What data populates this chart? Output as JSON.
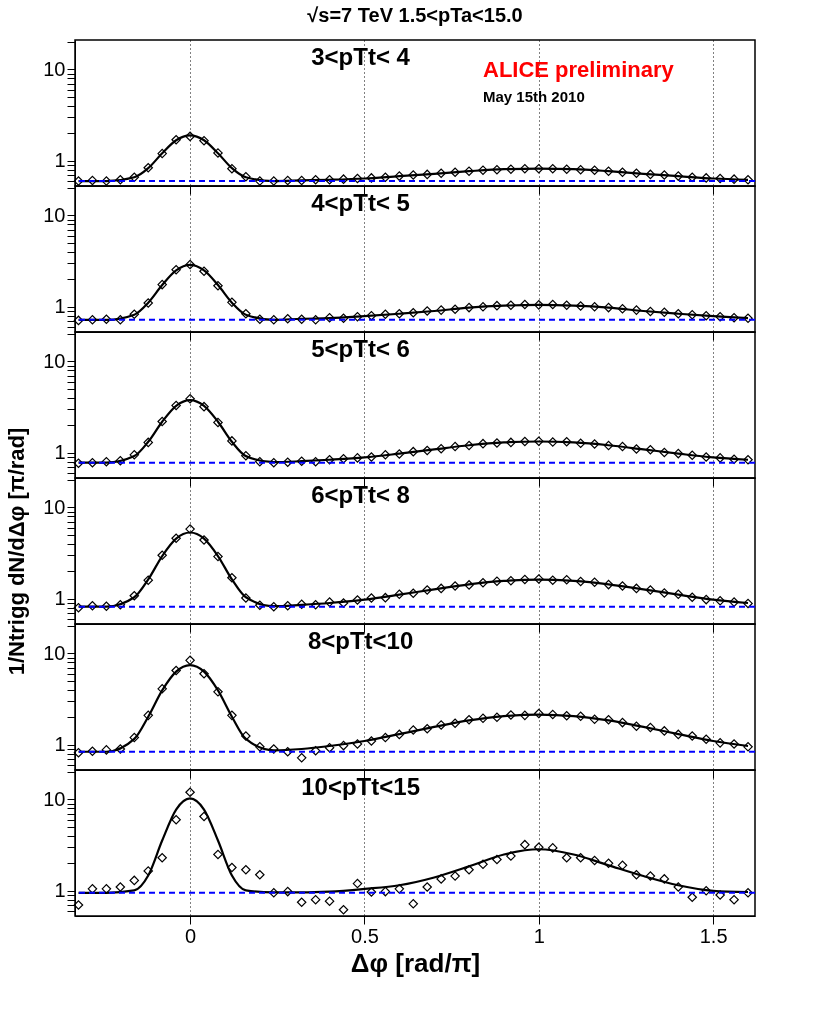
{
  "chart_data": [
    {
      "type": "scatter",
      "title": "√s=7 TeV     1.5<pTa<15.0",
      "subtitle": "3<pTt< 4",
      "annotations": [
        "ALICE preliminary",
        "May 15th 2010"
      ],
      "tick_labels": "y",
      "log": true,
      "grid": "x",
      "marker": "diamond",
      "x": [
        -0.32,
        -0.28,
        -0.24,
        -0.2,
        -0.16,
        -0.12,
        -0.08,
        -0.04,
        0,
        0.04,
        0.08,
        0.12,
        0.16,
        0.2,
        0.24,
        0.28,
        0.32,
        0.36,
        0.4,
        0.44,
        0.48,
        0.52,
        0.56,
        0.6,
        0.64,
        0.68,
        0.72,
        0.76,
        0.8,
        0.84,
        0.88,
        0.92,
        0.96,
        1.0,
        1.04,
        1.08,
        1.12,
        1.16,
        1.2,
        1.24,
        1.28,
        1.32,
        1.36,
        1.4,
        1.44,
        1.48,
        1.52,
        1.56,
        1.6
      ],
      "xlim": [
        -0.33,
        1.62
      ],
      "xticks": [
        0,
        0.5,
        1,
        1.5
      ],
      "ylim": [
        0.53,
        21
      ],
      "yticks": [
        {
          "value": 0.6,
          "label": null
        },
        {
          "value": 0.7,
          "label": null
        },
        {
          "value": 0.8,
          "label": null
        },
        {
          "value": 0.9,
          "label": null
        },
        1,
        {
          "value": 2,
          "label": null
        },
        {
          "value": 3,
          "label": null
        },
        {
          "value": 4,
          "label": null
        },
        {
          "value": 5,
          "label": null
        },
        {
          "value": 6,
          "label": null
        },
        {
          "value": 7,
          "label": null
        },
        {
          "value": 8,
          "label": null
        },
        {
          "value": 9,
          "label": null
        },
        10,
        {
          "value": 20,
          "label": null
        }
      ],
      "ref_lines": [
        {
          "axis": "y",
          "value": 0.6,
          "color": "#0000ff",
          "line_style": "dashed"
        }
      ],
      "series": [
        {
          "color": "#000000",
          "values": [
            0.6,
            0.61,
            0.6,
            0.62,
            0.66,
            0.84,
            1.2,
            1.7,
            1.85,
            1.66,
            1.22,
            0.82,
            0.67,
            0.6,
            0.6,
            0.61,
            0.61,
            0.62,
            0.62,
            0.63,
            0.64,
            0.65,
            0.66,
            0.68,
            0.7,
            0.71,
            0.73,
            0.75,
            0.77,
            0.79,
            0.8,
            0.81,
            0.82,
            0.82,
            0.82,
            0.81,
            0.8,
            0.79,
            0.77,
            0.75,
            0.73,
            0.71,
            0.7,
            0.68,
            0.66,
            0.65,
            0.64,
            0.63,
            0.62
          ]
        },
        {
          "type": "line",
          "color": "#000000",
          "x": [
            -0.32,
            -0.24,
            -0.16,
            -0.12,
            -0.08,
            -0.04,
            0,
            0.04,
            0.08,
            0.12,
            0.16,
            0.24,
            0.32,
            0.4,
            0.5,
            0.6,
            0.7,
            0.8,
            0.9,
            1.0,
            1.1,
            1.2,
            1.3,
            1.4,
            1.5,
            1.6
          ],
          "marker": "none",
          "values": [
            0.6,
            0.6,
            0.66,
            0.83,
            1.21,
            1.68,
            1.9,
            1.68,
            1.21,
            0.83,
            0.66,
            0.6,
            0.61,
            0.62,
            0.64,
            0.68,
            0.72,
            0.77,
            0.81,
            0.82,
            0.81,
            0.77,
            0.72,
            0.68,
            0.64,
            0.62
          ]
        }
      ]
    },
    {
      "type": "scatter",
      "subtitle": "4<pTt< 5",
      "tick_labels": "y",
      "log": true,
      "grid": "x",
      "marker": "diamond",
      "x": [
        -0.32,
        -0.28,
        -0.24,
        -0.2,
        -0.16,
        -0.12,
        -0.08,
        -0.04,
        0,
        0.04,
        0.08,
        0.12,
        0.16,
        0.2,
        0.24,
        0.28,
        0.32,
        0.36,
        0.4,
        0.44,
        0.48,
        0.52,
        0.56,
        0.6,
        0.64,
        0.68,
        0.72,
        0.76,
        0.8,
        0.84,
        0.88,
        0.92,
        0.96,
        1.0,
        1.04,
        1.08,
        1.12,
        1.16,
        1.2,
        1.24,
        1.28,
        1.32,
        1.36,
        1.4,
        1.44,
        1.48,
        1.52,
        1.56,
        1.6
      ],
      "xlim": [
        -0.33,
        1.62
      ],
      "xticks": [
        0,
        0.5,
        1,
        1.5
      ],
      "ylim": [
        0.53,
        21
      ],
      "yticks": [
        {
          "value": 0.6,
          "label": null
        },
        {
          "value": 0.7,
          "label": null
        },
        {
          "value": 0.8,
          "label": null
        },
        {
          "value": 0.9,
          "label": null
        },
        1,
        {
          "value": 2,
          "label": null
        },
        {
          "value": 3,
          "label": null
        },
        {
          "value": 4,
          "label": null
        },
        {
          "value": 5,
          "label": null
        },
        {
          "value": 6,
          "label": null
        },
        {
          "value": 7,
          "label": null
        },
        {
          "value": 8,
          "label": null
        },
        {
          "value": 9,
          "label": null
        },
        10,
        {
          "value": 20,
          "label": null
        }
      ],
      "ref_lines": [
        {
          "axis": "y",
          "value": 0.72,
          "color": "#0000ff",
          "line_style": "dashed"
        }
      ],
      "series": [
        {
          "color": "#000000",
          "values": [
            0.71,
            0.72,
            0.73,
            0.72,
            0.83,
            1.1,
            1.75,
            2.55,
            2.9,
            2.45,
            1.7,
            1.12,
            0.84,
            0.73,
            0.72,
            0.74,
            0.73,
            0.72,
            0.76,
            0.75,
            0.78,
            0.8,
            0.83,
            0.84,
            0.86,
            0.9,
            0.92,
            0.94,
            0.98,
            1.0,
            1.03,
            1.04,
            1.06,
            1.05,
            1.06,
            1.04,
            1.02,
            1.0,
            0.98,
            0.95,
            0.92,
            0.89,
            0.87,
            0.84,
            0.82,
            0.8,
            0.78,
            0.76,
            0.75
          ]
        },
        {
          "type": "line",
          "color": "#000000",
          "x": [
            -0.32,
            -0.24,
            -0.16,
            -0.12,
            -0.08,
            -0.04,
            0,
            0.04,
            0.08,
            0.12,
            0.16,
            0.24,
            0.32,
            0.4,
            0.5,
            0.6,
            0.7,
            0.8,
            0.9,
            1.0,
            1.1,
            1.2,
            1.3,
            1.4,
            1.5,
            1.6
          ],
          "marker": "none",
          "values": [
            0.72,
            0.72,
            0.82,
            1.11,
            1.73,
            2.5,
            2.87,
            2.5,
            1.73,
            1.11,
            0.82,
            0.72,
            0.74,
            0.75,
            0.79,
            0.84,
            0.9,
            0.98,
            1.03,
            1.05,
            1.03,
            0.98,
            0.9,
            0.84,
            0.79,
            0.75
          ]
        }
      ]
    },
    {
      "type": "scatter",
      "subtitle": "5<pTt< 6",
      "tick_labels": "y",
      "log": true,
      "grid": "x",
      "marker": "diamond",
      "x": [
        -0.32,
        -0.28,
        -0.24,
        -0.2,
        -0.16,
        -0.12,
        -0.08,
        -0.04,
        0,
        0.04,
        0.08,
        0.12,
        0.16,
        0.2,
        0.24,
        0.28,
        0.32,
        0.36,
        0.4,
        0.44,
        0.48,
        0.52,
        0.56,
        0.6,
        0.64,
        0.68,
        0.72,
        0.76,
        0.8,
        0.84,
        0.88,
        0.92,
        0.96,
        1.0,
        1.04,
        1.08,
        1.12,
        1.16,
        1.2,
        1.24,
        1.28,
        1.32,
        1.36,
        1.4,
        1.44,
        1.48,
        1.52,
        1.56,
        1.6
      ],
      "xlim": [
        -0.33,
        1.62
      ],
      "xticks": [
        0,
        0.5,
        1,
        1.5
      ],
      "ylim": [
        0.53,
        21
      ],
      "yticks": [
        {
          "value": 0.6,
          "label": null
        },
        {
          "value": 0.7,
          "label": null
        },
        {
          "value": 0.8,
          "label": null
        },
        {
          "value": 0.9,
          "label": null
        },
        1,
        {
          "value": 2,
          "label": null
        },
        {
          "value": 3,
          "label": null
        },
        {
          "value": 4,
          "label": null
        },
        {
          "value": 5,
          "label": null
        },
        {
          "value": 6,
          "label": null
        },
        {
          "value": 7,
          "label": null
        },
        {
          "value": 8,
          "label": null
        },
        {
          "value": 9,
          "label": null
        },
        10,
        {
          "value": 20,
          "label": null
        }
      ],
      "ref_lines": [
        {
          "axis": "y",
          "value": 0.78,
          "color": "#0000ff",
          "line_style": "dashed"
        }
      ],
      "series": [
        {
          "color": "#000000",
          "values": [
            0.77,
            0.78,
            0.8,
            0.82,
            0.95,
            1.3,
            2.2,
            3.3,
            3.9,
            3.2,
            2.15,
            1.35,
            0.93,
            0.8,
            0.78,
            0.79,
            0.81,
            0.8,
            0.84,
            0.86,
            0.88,
            0.9,
            0.95,
            0.97,
            1.03,
            1.06,
            1.11,
            1.17,
            1.2,
            1.26,
            1.28,
            1.3,
            1.33,
            1.34,
            1.31,
            1.32,
            1.27,
            1.25,
            1.2,
            1.17,
            1.1,
            1.08,
            1.01,
            0.98,
            0.94,
            0.9,
            0.88,
            0.85,
            0.84
          ]
        },
        {
          "type": "line",
          "color": "#000000",
          "x": [
            -0.32,
            -0.24,
            -0.16,
            -0.12,
            -0.08,
            -0.04,
            0,
            0.04,
            0.08,
            0.12,
            0.16,
            0.24,
            0.32,
            0.4,
            0.5,
            0.6,
            0.7,
            0.8,
            0.9,
            1.0,
            1.1,
            1.2,
            1.3,
            1.4,
            1.5,
            1.6
          ],
          "marker": "none",
          "values": [
            0.78,
            0.78,
            0.92,
            1.32,
            2.19,
            3.27,
            3.78,
            3.27,
            2.19,
            1.32,
            0.92,
            0.79,
            0.81,
            0.84,
            0.89,
            0.98,
            1.09,
            1.21,
            1.3,
            1.33,
            1.3,
            1.21,
            1.09,
            0.98,
            0.89,
            0.84
          ]
        }
      ]
    },
    {
      "type": "scatter",
      "subtitle": "6<pTt< 8",
      "ylabel": "1/Ntrigg dN/dΔφ   [π/rad]",
      "tick_labels": "y",
      "log": true,
      "grid": "x",
      "marker": "diamond",
      "x": [
        -0.32,
        -0.28,
        -0.24,
        -0.2,
        -0.16,
        -0.12,
        -0.08,
        -0.04,
        0,
        0.04,
        0.08,
        0.12,
        0.16,
        0.2,
        0.24,
        0.28,
        0.32,
        0.36,
        0.4,
        0.44,
        0.48,
        0.52,
        0.56,
        0.6,
        0.64,
        0.68,
        0.72,
        0.76,
        0.8,
        0.84,
        0.88,
        0.92,
        0.96,
        1.0,
        1.04,
        1.08,
        1.12,
        1.16,
        1.2,
        1.24,
        1.28,
        1.32,
        1.36,
        1.4,
        1.44,
        1.48,
        1.52,
        1.56,
        1.6
      ],
      "xlim": [
        -0.33,
        1.62
      ],
      "xticks": [
        0,
        0.5,
        1,
        1.5
      ],
      "ylim": [
        0.53,
        21
      ],
      "yticks": [
        {
          "value": 0.6,
          "label": null
        },
        {
          "value": 0.7,
          "label": null
        },
        {
          "value": 0.8,
          "label": null
        },
        {
          "value": 0.9,
          "label": null
        },
        1,
        {
          "value": 2,
          "label": null
        },
        {
          "value": 3,
          "label": null
        },
        {
          "value": 4,
          "label": null
        },
        {
          "value": 5,
          "label": null
        },
        {
          "value": 6,
          "label": null
        },
        {
          "value": 7,
          "label": null
        },
        {
          "value": 8,
          "label": null
        },
        {
          "value": 9,
          "label": null
        },
        10,
        {
          "value": 20,
          "label": null
        }
      ],
      "ref_lines": [
        {
          "axis": "y",
          "value": 0.82,
          "color": "#0000ff",
          "line_style": "dashed"
        }
      ],
      "series": [
        {
          "color": "#000000",
          "values": [
            0.8,
            0.84,
            0.83,
            0.86,
            1.08,
            1.6,
            3.0,
            4.6,
            5.8,
            4.4,
            2.9,
            1.7,
            1.02,
            0.85,
            0.82,
            0.84,
            0.87,
            0.86,
            0.92,
            0.9,
            0.97,
            1.02,
            1.03,
            1.12,
            1.15,
            1.25,
            1.3,
            1.38,
            1.42,
            1.5,
            1.56,
            1.58,
            1.63,
            1.65,
            1.6,
            1.62,
            1.55,
            1.52,
            1.43,
            1.38,
            1.3,
            1.25,
            1.16,
            1.12,
            1.04,
            0.98,
            0.95,
            0.92,
            0.89
          ]
        },
        {
          "type": "line",
          "color": "#000000",
          "x": [
            -0.32,
            -0.24,
            -0.16,
            -0.12,
            -0.08,
            -0.04,
            0,
            0.04,
            0.08,
            0.12,
            0.16,
            0.24,
            0.32,
            0.4,
            0.5,
            0.6,
            0.7,
            0.8,
            0.9,
            1.0,
            1.1,
            1.2,
            1.3,
            1.4,
            1.5,
            1.6
          ],
          "marker": "none",
          "values": [
            0.82,
            0.82,
            1.04,
            1.63,
            2.94,
            4.56,
            5.32,
            4.56,
            2.94,
            1.63,
            1.04,
            0.83,
            0.86,
            0.9,
            0.98,
            1.11,
            1.27,
            1.44,
            1.57,
            1.62,
            1.57,
            1.44,
            1.27,
            1.11,
            0.98,
            0.9
          ]
        }
      ]
    },
    {
      "type": "scatter",
      "subtitle": "8<pTt<10",
      "tick_labels": "y",
      "log": true,
      "grid": "x",
      "marker": "diamond",
      "x": [
        -0.32,
        -0.28,
        -0.24,
        -0.2,
        -0.16,
        -0.12,
        -0.08,
        -0.04,
        0,
        0.04,
        0.08,
        0.12,
        0.16,
        0.2,
        0.24,
        0.28,
        0.32,
        0.36,
        0.4,
        0.44,
        0.48,
        0.52,
        0.56,
        0.6,
        0.64,
        0.68,
        0.72,
        0.76,
        0.8,
        0.84,
        0.88,
        0.92,
        0.96,
        1.0,
        1.04,
        1.08,
        1.12,
        1.16,
        1.2,
        1.24,
        1.28,
        1.32,
        1.36,
        1.4,
        1.44,
        1.48,
        1.52,
        1.56,
        1.6
      ],
      "xlim": [
        -0.33,
        1.62
      ],
      "xticks": [
        0,
        0.5,
        1,
        1.5
      ],
      "ylim": [
        0.53,
        21
      ],
      "yticks": [
        {
          "value": 0.6,
          "label": null
        },
        {
          "value": 0.7,
          "label": null
        },
        {
          "value": 0.8,
          "label": null
        },
        {
          "value": 0.9,
          "label": null
        },
        1,
        {
          "value": 2,
          "label": null
        },
        {
          "value": 3,
          "label": null
        },
        {
          "value": 4,
          "label": null
        },
        {
          "value": 5,
          "label": null
        },
        {
          "value": 6,
          "label": null
        },
        {
          "value": 7,
          "label": null
        },
        {
          "value": 8,
          "label": null
        },
        {
          "value": 9,
          "label": null
        },
        10,
        {
          "value": 20,
          "label": null
        }
      ],
      "ref_lines": [
        {
          "axis": "y",
          "value": 0.84,
          "color": "#0000ff",
          "line_style": "dashed"
        }
      ],
      "series": [
        {
          "color": "#000000",
          "values": [
            0.82,
            0.85,
            0.88,
            0.9,
            1.2,
            2.1,
            4.1,
            6.5,
            8.4,
            6.0,
            3.8,
            2.1,
            1.25,
            0.95,
            0.9,
            0.84,
            0.72,
            0.86,
            0.93,
            0.98,
            1.02,
            1.1,
            1.2,
            1.3,
            1.45,
            1.5,
            1.65,
            1.72,
            1.88,
            1.95,
            2.0,
            2.12,
            2.1,
            2.2,
            2.15,
            2.08,
            2.05,
            1.9,
            1.88,
            1.75,
            1.6,
            1.55,
            1.42,
            1.3,
            1.25,
            1.15,
            1.05,
            1.02,
            0.95
          ]
        },
        {
          "type": "line",
          "color": "#000000",
          "x": [
            -0.32,
            -0.24,
            -0.16,
            -0.12,
            -0.08,
            -0.04,
            0,
            0.04,
            0.08,
            0.12,
            0.16,
            0.24,
            0.32,
            0.4,
            0.5,
            0.6,
            0.7,
            0.8,
            0.9,
            1.0,
            1.1,
            1.2,
            1.3,
            1.4,
            1.5,
            1.6
          ],
          "marker": "none",
          "values": [
            0.84,
            0.84,
            1.16,
            2.03,
            3.94,
            6.32,
            7.44,
            6.32,
            3.94,
            2.03,
            1.16,
            0.87,
            0.9,
            0.97,
            1.1,
            1.31,
            1.57,
            1.85,
            2.06,
            2.14,
            2.06,
            1.85,
            1.57,
            1.31,
            1.1,
            0.97
          ]
        }
      ]
    },
    {
      "type": "scatter",
      "subtitle": "10<pTt<15",
      "xlabel": "Δφ    [rad/π]",
      "log": true,
      "grid": "x",
      "marker": "diamond",
      "x": [
        -0.32,
        -0.28,
        -0.24,
        -0.2,
        -0.16,
        -0.12,
        -0.08,
        -0.04,
        0,
        0.04,
        0.08,
        0.12,
        0.16,
        0.2,
        0.24,
        0.28,
        0.32,
        0.36,
        0.4,
        0.44,
        0.48,
        0.52,
        0.56,
        0.6,
        0.64,
        0.68,
        0.72,
        0.76,
        0.8,
        0.84,
        0.88,
        0.92,
        0.96,
        1.0,
        1.04,
        1.08,
        1.12,
        1.16,
        1.2,
        1.24,
        1.28,
        1.32,
        1.36,
        1.4,
        1.44,
        1.48,
        1.52,
        1.56,
        1.6
      ],
      "xlim": [
        -0.33,
        1.62
      ],
      "xticks": [
        0,
        0.5,
        1,
        1.5
      ],
      "ylim": [
        0.53,
        21
      ],
      "yticks": [
        {
          "value": 0.6,
          "label": null
        },
        {
          "value": 0.7,
          "label": null
        },
        {
          "value": 0.8,
          "label": null
        },
        {
          "value": 0.9,
          "label": null
        },
        1,
        {
          "value": 2,
          "label": null
        },
        {
          "value": 3,
          "label": null
        },
        {
          "value": 4,
          "label": null
        },
        {
          "value": 5,
          "label": null
        },
        {
          "value": 6,
          "label": null
        },
        {
          "value": 7,
          "label": null
        },
        {
          "value": 8,
          "label": null
        },
        {
          "value": 9,
          "label": null
        },
        10,
        {
          "value": 20,
          "label": null
        }
      ],
      "ref_lines": [
        {
          "axis": "y",
          "value": 0.95,
          "color": "#0000ff",
          "line_style": "dashed"
        }
      ],
      "series": [
        {
          "color": "#000000",
          "values": [
            0.7,
            1.05,
            1.05,
            1.1,
            1.3,
            1.65,
            2.3,
            6.0,
            12.0,
            6.5,
            2.5,
            1.8,
            1.7,
            1.5,
            0.95,
            0.98,
            0.75,
            0.8,
            0.77,
            0.62,
            1.2,
            0.97,
            0.98,
            1.05,
            0.72,
            1.1,
            1.35,
            1.45,
            1.7,
            1.95,
            2.2,
            2.4,
            3.2,
            3.0,
            2.95,
            2.3,
            2.3,
            2.15,
            2.0,
            1.9,
            1.5,
            1.45,
            1.35,
            1.1,
            0.85,
            1.0,
            0.9,
            0.8,
            0.95
          ]
        },
        {
          "type": "line",
          "color": "#000000",
          "x": [
            -0.32,
            -0.24,
            -0.16,
            -0.12,
            -0.08,
            -0.04,
            0,
            0.04,
            0.08,
            0.12,
            0.16,
            0.24,
            0.32,
            0.4,
            0.5,
            0.6,
            0.7,
            0.8,
            0.9,
            1.0,
            1.1,
            1.2,
            1.3,
            1.4,
            1.5,
            1.6
          ],
          "marker": "none",
          "values": [
            0.95,
            0.95,
            1.01,
            1.47,
            3.55,
            7.74,
            10.25,
            7.74,
            3.55,
            1.47,
            1.01,
            0.96,
            0.96,
            0.98,
            1.05,
            1.15,
            1.4,
            1.85,
            2.5,
            2.85,
            2.5,
            1.9,
            1.45,
            1.15,
            1.0,
            0.97
          ]
        }
      ]
    }
  ]
}
